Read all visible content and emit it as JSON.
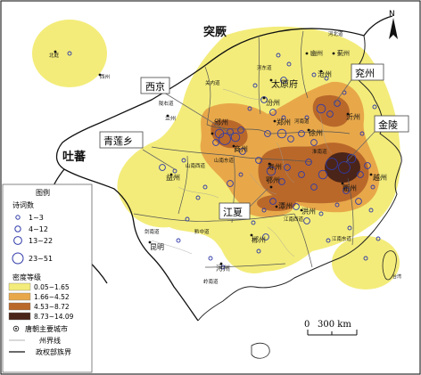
{
  "map_title": "",
  "regions": {
    "tujue": "突厥",
    "tubo": "吐蕃",
    "guanneidao": "关内道",
    "hedongdao": "河东道",
    "hebeidao": "河北道",
    "longyoudao": "陇右道",
    "shannanxidao": "山南西道",
    "shannandongdao": "山南东道",
    "huainandao": "淮南道",
    "jiangnanxidao": "江南西道",
    "jiangnandongdao": "江南东道",
    "jiannandao": "剑南道",
    "qianzhongdao": "黔中道",
    "lingnandao": "岭南道",
    "henandao": "河南道",
    "xizhou": "西州",
    "beiting": "北庭"
  },
  "cities": {
    "taiyuan": "太原府",
    "youzhou": "幽州",
    "jizhou": "蓟州",
    "cangzhou": "沧州",
    "fenzhou": "汾州",
    "lanzhou": "兰州",
    "binzhou": "邠州",
    "shangzhou": "商州",
    "xuzhou": "徐州",
    "yanzhou": "兖州",
    "yizhou": "沂州",
    "ezhou": "鄂州",
    "hongzhou": "洪州",
    "tanzhou": "潭州",
    "chenzhou": "郴州",
    "xunzhou": "浔州",
    "kunming": "昆明",
    "yizhou2": "益州",
    "quzhou": "衢州",
    "yuezhou": "越州",
    "shouzhou": "寿州",
    "zhengzhou": "郑州",
    "taizhou": "台湾"
  },
  "callouts": {
    "xijing": "西京",
    "qinglianxiang": "青莲乡",
    "jiangxia": "江夏",
    "jinling": "金陵",
    "yanzhou_box": "兖州"
  },
  "scale": {
    "label": "300 km",
    "zero": "0"
  },
  "north": "N",
  "legend": {
    "title": "图例",
    "poem_title": "诗词数",
    "poem_classes": [
      "1~3",
      "4~12",
      "13~22",
      "23~51"
    ],
    "density_title": "密度等级",
    "density_classes": [
      "0.05~1.65",
      "1.66~4.52",
      "4.53~8.72",
      "8.73~14.09"
    ],
    "density_colors": [
      "#f3ec7a",
      "#e8a84a",
      "#b9682a",
      "#4a2418"
    ],
    "city_label": "唐朝主要城市",
    "prefecture_line": "州界线",
    "regime_line": "政权部族界"
  },
  "colors": {
    "point_stroke": "#2f3aa8",
    "boundary": "#222222",
    "prefecture": "#9a9a9a"
  }
}
